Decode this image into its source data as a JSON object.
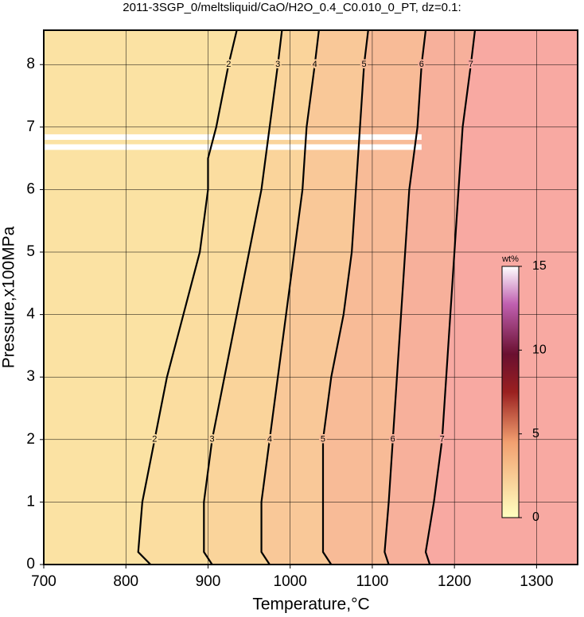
{
  "chart_data": {
    "type": "contour",
    "title": "2011-3SGP_0/meltsliquid/CaO/H2O_0.4_C0.010_0_PT, dz=0.1:",
    "x_label": "Temperature,°C",
    "y_label": "Pressure,x100MPa",
    "xlim": [
      700,
      1350
    ],
    "xticks": [
      700,
      800,
      900,
      1000,
      1100,
      1200,
      1300
    ],
    "ylim": [
      0,
      8.55
    ],
    "yticks": [
      0,
      1,
      2,
      3,
      4,
      5,
      6,
      7,
      8
    ],
    "grid": true,
    "background": "#fbe2a3",
    "series": [
      {
        "name": "2",
        "color": "#000000",
        "fill": "#fbdda0",
        "x": [
          830,
          815,
          820,
          835,
          850,
          870,
          890,
          900,
          900,
          910,
          925,
          935
        ],
        "values": [
          0,
          0.2,
          1,
          2,
          3,
          4,
          5,
          6,
          6.5,
          7,
          8,
          8.55
        ]
      },
      {
        "name": "3",
        "color": "#000000",
        "fill": "#fad49b",
        "x": [
          905,
          895,
          895,
          905,
          920,
          935,
          950,
          965,
          975,
          985,
          990
        ],
        "values": [
          0,
          0.2,
          1,
          2,
          3,
          4,
          5,
          6,
          7,
          8,
          8.55
        ]
      },
      {
        "name": "4",
        "color": "#000000",
        "fill": "#f9c898",
        "x": [
          975,
          965,
          965,
          975,
          985,
          995,
          1005,
          1015,
          1020,
          1030,
          1035
        ],
        "values": [
          0,
          0.2,
          1,
          2,
          3,
          4,
          5,
          6,
          7,
          8,
          8.55
        ]
      },
      {
        "name": "5",
        "color": "#000000",
        "fill": "#f8bb97",
        "x": [
          1050,
          1040,
          1040,
          1040,
          1050,
          1065,
          1075,
          1080,
          1085,
          1090,
          1095
        ],
        "values": [
          0,
          0.2,
          1,
          2,
          3,
          4,
          5,
          6,
          7,
          8,
          8.55
        ]
      },
      {
        "name": "6",
        "color": "#000000",
        "fill": "#f7b09b",
        "x": [
          1120,
          1115,
          1120,
          1125,
          1130,
          1135,
          1140,
          1145,
          1155,
          1160,
          1165
        ],
        "values": [
          0,
          0.2,
          1,
          2,
          3,
          4,
          5,
          6,
          7,
          8,
          8.55
        ]
      },
      {
        "name": "7",
        "color": "#000000",
        "fill": "#f8a9a2",
        "x": [
          1170,
          1165,
          1175,
          1185,
          1190,
          1195,
          1200,
          1205,
          1210,
          1220,
          1225
        ],
        "values": [
          0,
          0.2,
          1,
          2,
          3,
          4,
          5,
          6,
          7,
          8,
          8.55
        ]
      }
    ],
    "colorbar": {
      "label": "wt%",
      "lim": [
        0,
        15
      ],
      "ticks": [
        0,
        5,
        10,
        15
      ]
    }
  }
}
